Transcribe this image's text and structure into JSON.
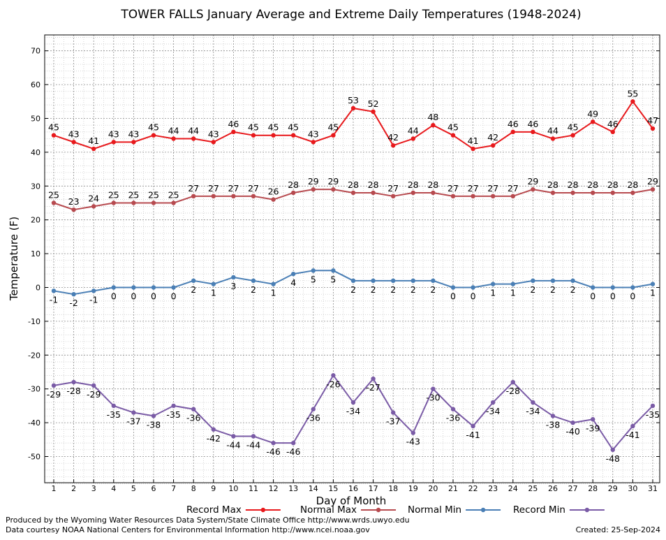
{
  "chart_data": {
    "type": "line",
    "title": "TOWER FALLS January Average and Extreme Daily Temperatures (1948-2024)",
    "xlabel": "Day of Month",
    "ylabel": "Temperature (F)",
    "ylim": [
      -58,
      74
    ],
    "y_ticks": [
      -50,
      -40,
      -30,
      -20,
      -10,
      0,
      10,
      20,
      30,
      40,
      50,
      60,
      70
    ],
    "grid": true,
    "legend_position": "bottom",
    "categories": [
      "1",
      "2",
      "3",
      "4",
      "5",
      "6",
      "7",
      "8",
      "9",
      "10",
      "11",
      "12",
      "13",
      "14",
      "15",
      "16",
      "17",
      "18",
      "19",
      "20",
      "21",
      "22",
      "23",
      "24",
      "25",
      "26",
      "27",
      "28",
      "29",
      "30",
      "31"
    ],
    "series": [
      {
        "name": "Record Max",
        "color": "#e8191c",
        "label_side": "above",
        "values": [
          45,
          43,
          41,
          43,
          43,
          45,
          44,
          44,
          43,
          46,
          45,
          45,
          45,
          43,
          45,
          53,
          52,
          42,
          44,
          48,
          45,
          41,
          42,
          46,
          46,
          44,
          45,
          49,
          46,
          55,
          47
        ]
      },
      {
        "name": "Normal Max",
        "color": "#b74a4f",
        "label_side": "above",
        "values": [
          25,
          23,
          24,
          25,
          25,
          25,
          25,
          27,
          27,
          27,
          27,
          26,
          28,
          29,
          29,
          28,
          28,
          27,
          28,
          28,
          27,
          27,
          27,
          27,
          29,
          28,
          28,
          28,
          28,
          28,
          29
        ]
      },
      {
        "name": "Normal Min",
        "color": "#4a7fb5",
        "label_side": "below",
        "values": [
          -1,
          -2,
          -1,
          0,
          0,
          0,
          0,
          2,
          1,
          3,
          2,
          1,
          4,
          5,
          5,
          2,
          2,
          2,
          2,
          2,
          0,
          0,
          1,
          1,
          2,
          2,
          2,
          0,
          0,
          0,
          1
        ]
      },
      {
        "name": "Record Min",
        "color": "#7a5ba6",
        "label_side": "below",
        "values": [
          -29,
          -28,
          -29,
          -35,
          -37,
          -38,
          -35,
          -36,
          -42,
          -44,
          -44,
          -46,
          -46,
          -36,
          -26,
          -34,
          -27,
          -37,
          -43,
          -30,
          -36,
          -41,
          -34,
          -28,
          -34,
          -38,
          -40,
          -39,
          -48,
          -41,
          -35
        ]
      }
    ]
  },
  "footer": {
    "produced_by": "Produced by the Wyoming Water Resources Data System/State Climate Office http://www.wrds.uwyo.edu",
    "courtesy": "Data courtesy NOAA National Centers for Environmental Information http://www.ncei.noaa.gov",
    "created": "Created:  25-Sep-2024"
  }
}
